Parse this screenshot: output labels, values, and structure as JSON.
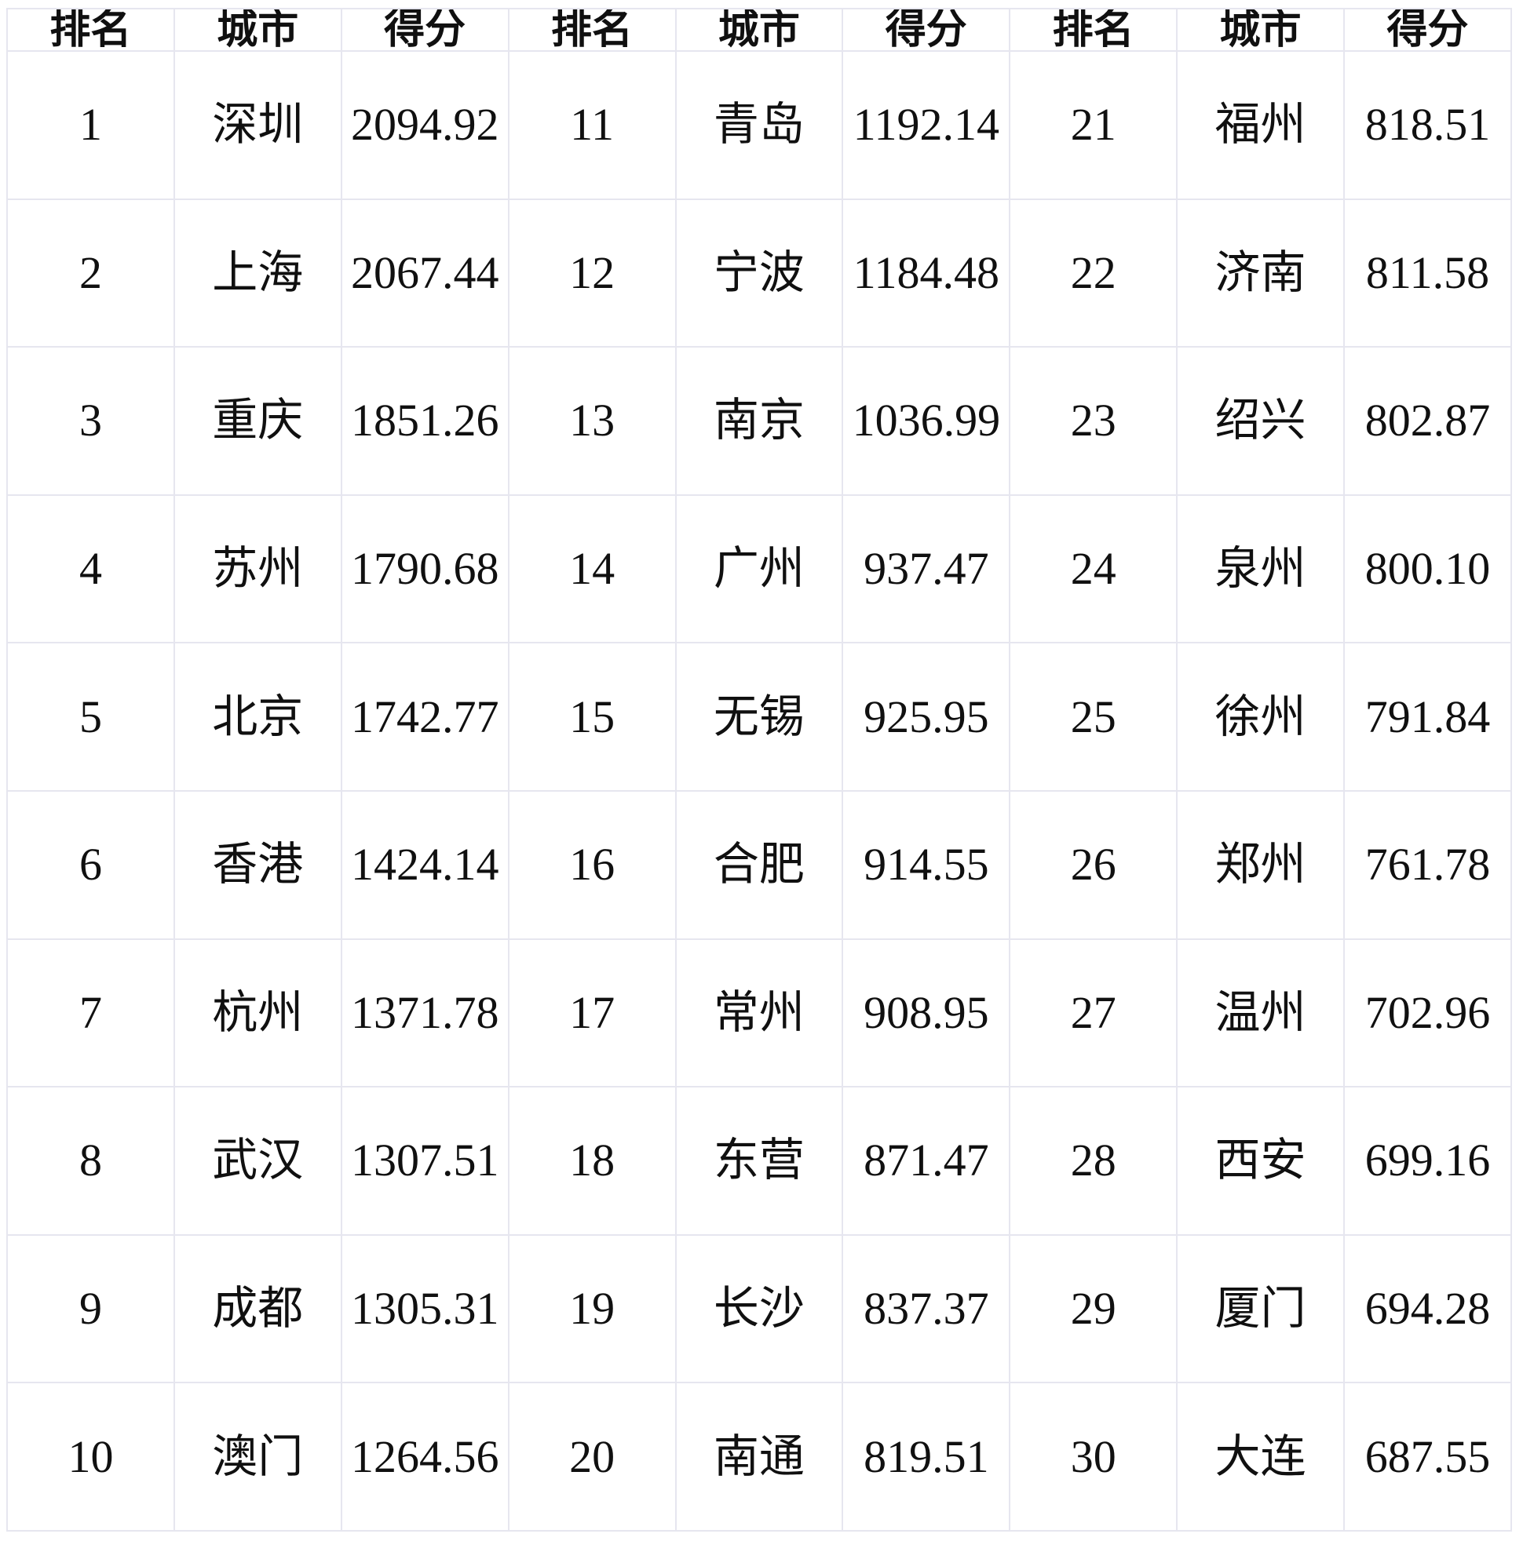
{
  "chart_data": {
    "type": "table",
    "title": "",
    "columns": [
      "排名",
      "城市",
      "得分",
      "排名",
      "城市",
      "得分",
      "排名",
      "城市",
      "得分"
    ],
    "rows": [
      [
        "1",
        "深圳",
        "2094.92",
        "11",
        "青岛",
        "1192.14",
        "21",
        "福州",
        "818.51"
      ],
      [
        "2",
        "上海",
        "2067.44",
        "12",
        "宁波",
        "1184.48",
        "22",
        "济南",
        "811.58"
      ],
      [
        "3",
        "重庆",
        "1851.26",
        "13",
        "南京",
        "1036.99",
        "23",
        "绍兴",
        "802.87"
      ],
      [
        "4",
        "苏州",
        "1790.68",
        "14",
        "广州",
        "937.47",
        "24",
        "泉州",
        "800.10"
      ],
      [
        "5",
        "北京",
        "1742.77",
        "15",
        "无锡",
        "925.95",
        "25",
        "徐州",
        "791.84"
      ],
      [
        "6",
        "香港",
        "1424.14",
        "16",
        "合肥",
        "914.55",
        "26",
        "郑州",
        "761.78"
      ],
      [
        "7",
        "杭州",
        "1371.78",
        "17",
        "常州",
        "908.95",
        "27",
        "温州",
        "702.96"
      ],
      [
        "8",
        "武汉",
        "1307.51",
        "18",
        "东营",
        "871.47",
        "28",
        "西安",
        "699.16"
      ],
      [
        "9",
        "成都",
        "1305.31",
        "19",
        "长沙",
        "837.37",
        "29",
        "厦门",
        "694.28"
      ],
      [
        "10",
        "澳门",
        "1264.56",
        "20",
        "南通",
        "819.51",
        "30",
        "大连",
        "687.55"
      ]
    ]
  },
  "colors": {
    "background": "#ffffff",
    "grid_border": "#e6e6ef",
    "text": "#101010"
  },
  "layout_hints": {
    "column_groups": 3,
    "rows_per_group": 10,
    "grid": "on",
    "header_style": "bold"
  }
}
